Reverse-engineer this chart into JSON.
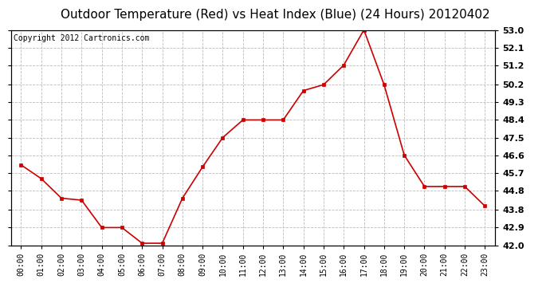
{
  "title": "Outdoor Temperature (Red) vs Heat Index (Blue) (24 Hours) 20120402",
  "copyright": "Copyright 2012 Cartronics.com",
  "x_labels": [
    "00:00",
    "01:00",
    "02:00",
    "03:00",
    "04:00",
    "05:00",
    "06:00",
    "07:00",
    "08:00",
    "09:00",
    "10:00",
    "11:00",
    "12:00",
    "13:00",
    "14:00",
    "15:00",
    "16:00",
    "17:00",
    "18:00",
    "19:00",
    "20:00",
    "21:00",
    "22:00",
    "23:00"
  ],
  "temp_values": [
    46.1,
    45.4,
    44.4,
    44.3,
    42.9,
    42.9,
    42.1,
    42.1,
    44.4,
    46.0,
    47.5,
    48.4,
    48.4,
    48.4,
    49.9,
    50.2,
    51.2,
    53.0,
    50.2,
    46.6,
    45.0,
    45.0,
    45.0,
    44.0
  ],
  "ylim_min": 42.0,
  "ylim_max": 53.0,
  "yticks": [
    42.0,
    42.9,
    43.8,
    44.8,
    45.7,
    46.6,
    47.5,
    48.4,
    49.3,
    50.2,
    51.2,
    52.1,
    53.0
  ],
  "line_color": "#cc0000",
  "marker": "s",
  "marker_size": 3,
  "bg_color": "#ffffff",
  "grid_color": "#bbbbbb",
  "title_fontsize": 11,
  "copyright_fontsize": 7,
  "tick_fontsize": 8,
  "xtick_fontsize": 7
}
